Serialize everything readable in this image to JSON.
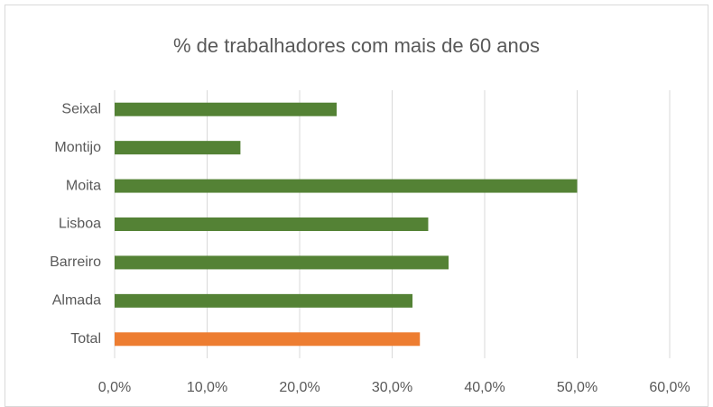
{
  "chart_data": {
    "type": "bar",
    "orientation": "horizontal",
    "title": "% de trabalhadores com mais de 60 anos",
    "categories": [
      "Seixal",
      "Montijo",
      "Moita",
      "Lisboa",
      "Barreiro",
      "Almada",
      "Total"
    ],
    "values": [
      24.0,
      13.6,
      50.0,
      33.9,
      36.1,
      32.2,
      33.0
    ],
    "colors": [
      "#548235",
      "#548235",
      "#548235",
      "#548235",
      "#548235",
      "#548235",
      "#ed7d31"
    ],
    "xlim": [
      0,
      60
    ],
    "xticks": [
      {
        "value": 0,
        "label": "0,0%"
      },
      {
        "value": 10,
        "label": "10,0%"
      },
      {
        "value": 20,
        "label": "20,0%"
      },
      {
        "value": 30,
        "label": "30,0%"
      },
      {
        "value": 40,
        "label": "40,0%"
      },
      {
        "value": 50,
        "label": "50,0%"
      },
      {
        "value": 60,
        "label": "60,0%"
      }
    ],
    "grid": true
  }
}
